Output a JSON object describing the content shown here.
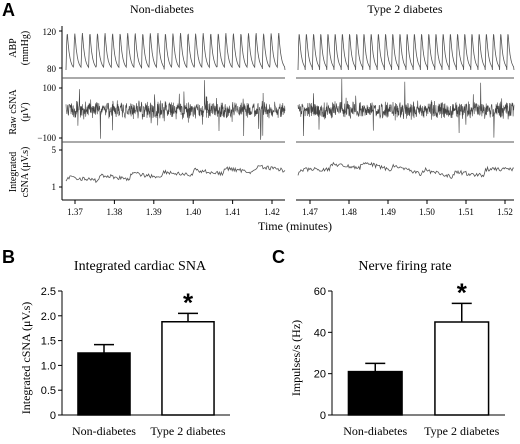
{
  "panel_a": {
    "letter": "A",
    "left_title": "Non-diabetes",
    "right_title": "Type 2 diabetes",
    "abp_label": "ABP",
    "abp_unit": "(mmHg)",
    "abp_ticks": [
      "120",
      "80"
    ],
    "raw_label": "Raw cSNA",
    "raw_unit": "(μV)",
    "raw_ticks": [
      "100",
      "−100"
    ],
    "int_label": "Integrated",
    "int_unit": "cSNA (μV.s)",
    "int_ticks": [
      "5",
      "1"
    ],
    "x_ticks_left": [
      "1.37",
      "1.38",
      "1.39",
      "1.40",
      "1.41",
      "1.42"
    ],
    "x_ticks_right": [
      "1.47",
      "1.48",
      "1.49",
      "1.50",
      "1.51",
      "1.52"
    ],
    "xlabel": "Time (minutes)"
  },
  "chart_data": [
    {
      "type": "bar",
      "panel": "B",
      "title": "Integrated cardiac SNA",
      "ylabel": "Integrated cSNA (μV.s)",
      "xlabel": "",
      "categories": [
        "Non-diabetes",
        "Type 2 diabetes"
      ],
      "values": [
        1.25,
        1.88
      ],
      "errors": [
        0.17,
        0.17
      ],
      "fill": [
        "#000000",
        "#ffffff"
      ],
      "ylim": [
        0,
        2.5
      ],
      "yticks": [
        "0",
        "0.5",
        "1.0",
        "1.5",
        "2.0",
        "2.5"
      ],
      "annotation": "*"
    },
    {
      "type": "bar",
      "panel": "C",
      "title": "Nerve firing rate",
      "ylabel": "Impulses/s (Hz)",
      "xlabel": "",
      "categories": [
        "Non-diabetes",
        "Type 2 diabetes"
      ],
      "values": [
        21,
        45
      ],
      "errors": [
        4,
        9
      ],
      "fill": [
        "#000000",
        "#ffffff"
      ],
      "ylim": [
        0,
        60
      ],
      "yticks": [
        "0",
        "20",
        "40",
        "60"
      ],
      "annotation": "*"
    }
  ]
}
